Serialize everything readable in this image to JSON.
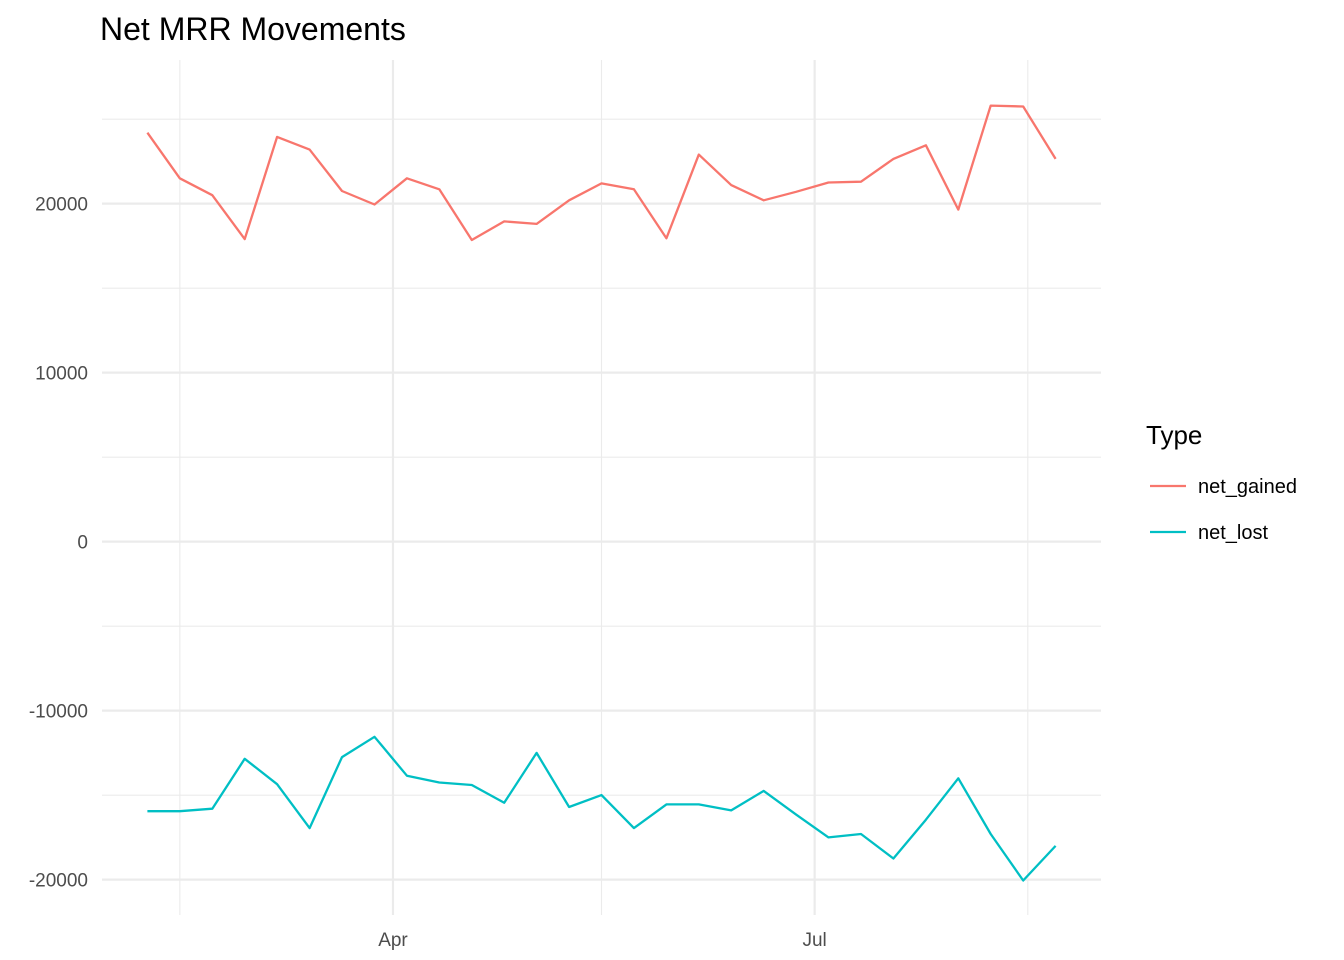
{
  "chart_data": {
    "type": "line",
    "title": "Net MRR Movements",
    "xlabel": "",
    "ylabel": "",
    "x_axis": "date",
    "x_tick_labels": [
      "Apr",
      "Jul"
    ],
    "y_tick_labels": [
      "-20000",
      "-10000",
      "0",
      "10000",
      "20000"
    ],
    "ylim": [
      -21500,
      28500
    ],
    "grid": true,
    "legend": {
      "title": "Type",
      "position": "right"
    },
    "x": [
      "2021-02-07",
      "2021-02-14",
      "2021-02-21",
      "2021-02-28",
      "2021-03-07",
      "2021-03-14",
      "2021-03-21",
      "2021-03-28",
      "2021-04-04",
      "2021-04-11",
      "2021-04-18",
      "2021-04-25",
      "2021-05-02",
      "2021-05-09",
      "2021-05-16",
      "2021-05-23",
      "2021-05-30",
      "2021-06-06",
      "2021-06-13",
      "2021-06-20",
      "2021-06-27",
      "2021-07-04",
      "2021-07-11",
      "2021-07-18",
      "2021-07-25",
      "2021-08-01",
      "2021-08-08",
      "2021-08-15",
      "2021-08-22"
    ],
    "series": [
      {
        "name": "net_gained",
        "color": "#F8766D",
        "values": [
          24200,
          21500,
          20500,
          17900,
          23950,
          23200,
          20750,
          19950,
          21500,
          20850,
          17850,
          18950,
          18800,
          20200,
          21200,
          20850,
          17950,
          22900,
          21100,
          20200,
          20700,
          21250,
          21300,
          22650,
          23450,
          19650,
          25800,
          25750,
          22650
        ]
      },
      {
        "name": "net_lost",
        "color": "#00BFC4",
        "values": [
          -15950,
          -15950,
          -15800,
          -12850,
          -14350,
          -16950,
          -12750,
          -11550,
          -13850,
          -14250,
          -14400,
          -15450,
          -12500,
          -15700,
          -15000,
          -16950,
          -15550,
          -15550,
          -15900,
          -14750,
          -16150,
          -17500,
          -17300,
          -18750,
          -16450,
          -14000,
          -17300,
          -20050,
          -18000
        ]
      }
    ]
  }
}
